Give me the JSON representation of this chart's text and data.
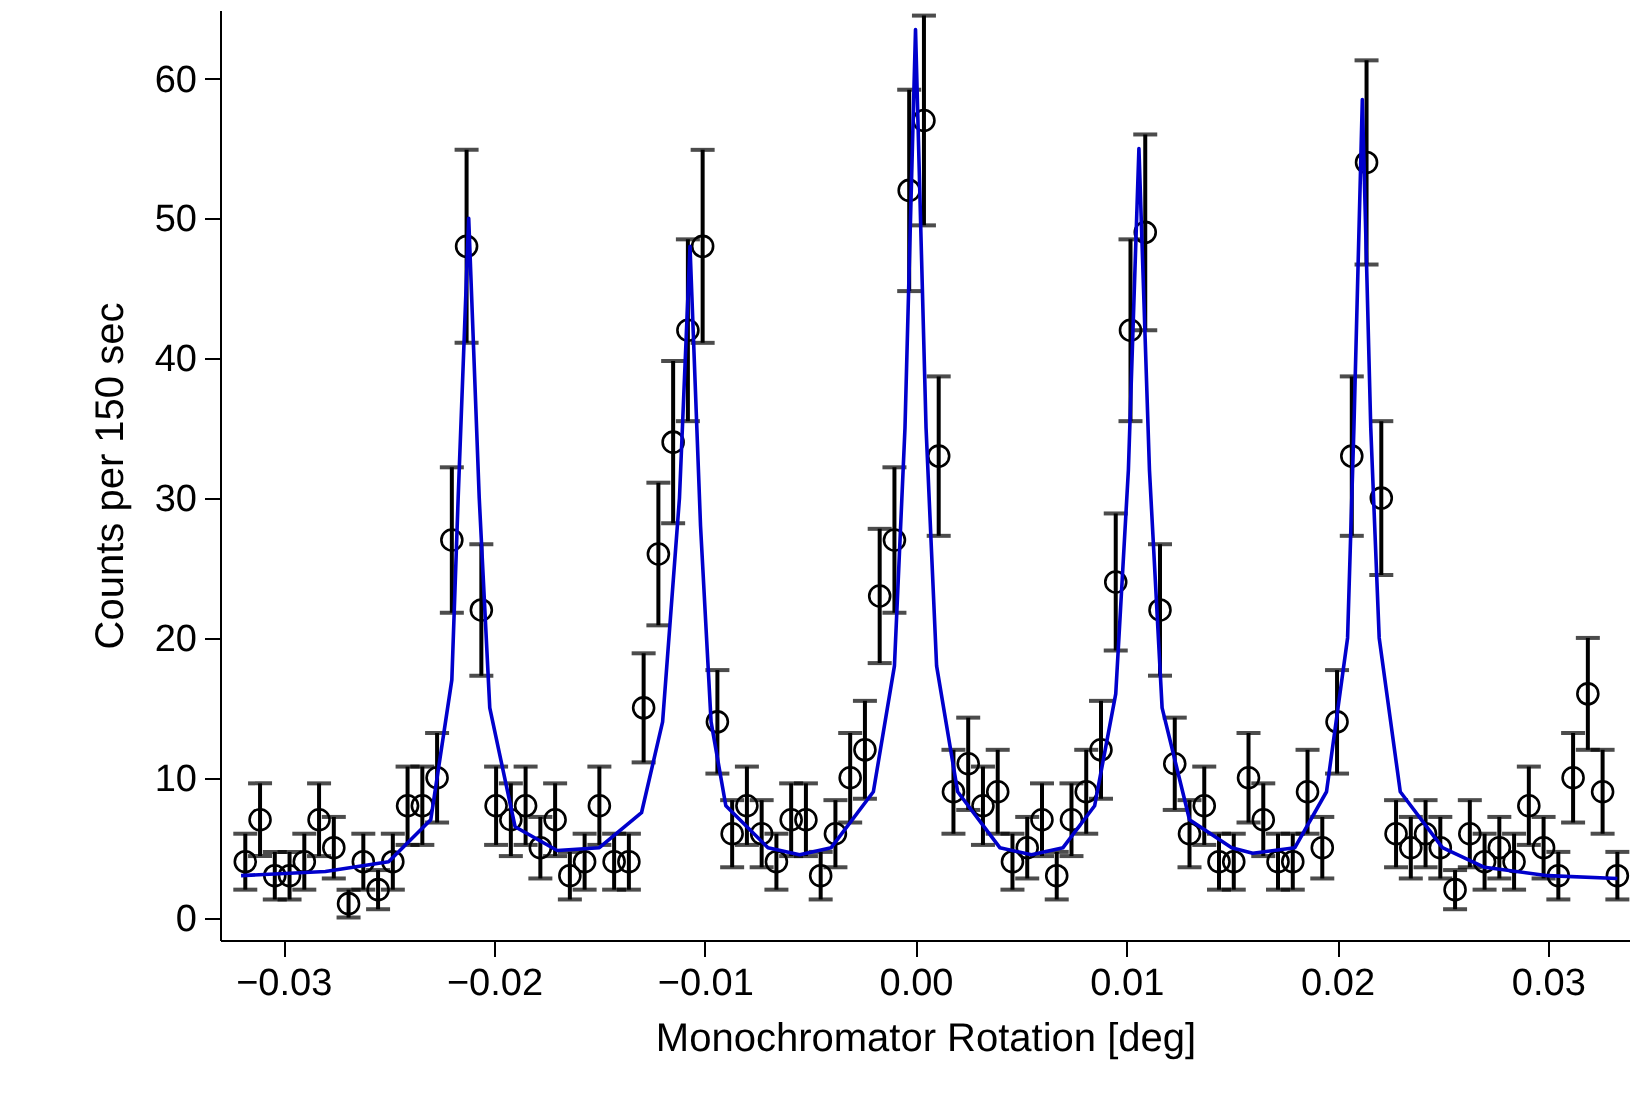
{
  "chart_data": {
    "type": "scatter",
    "xlabel": "Monochromator Rotation [deg]",
    "ylabel": "Counts per 150 sec",
    "xlim": [
      -0.033,
      0.0339
    ],
    "ylim": [
      -1.6,
      64.9
    ],
    "xticks": [
      -0.03,
      -0.02,
      -0.01,
      {
        "value": 0,
        "label": "0.00"
      },
      0.01,
      0.02,
      0.03
    ],
    "yticks": [
      0,
      10,
      20,
      30,
      40,
      50,
      60
    ],
    "grid": false,
    "series": [
      {
        "color": "#000000",
        "marker": "circle",
        "x": [
          -0.0318,
          -0.0311,
          -0.0304,
          -0.0297,
          -0.029,
          -0.0283,
          -0.0276,
          -0.0269,
          -0.0262,
          -0.0255,
          -0.0248,
          -0.0241,
          -0.0234,
          -0.0227,
          -0.022,
          -0.0213,
          -0.0206,
          -0.0199,
          -0.0192,
          -0.0185,
          -0.0178,
          -0.0171,
          -0.0164,
          -0.0157,
          -0.015,
          -0.0143,
          -0.0136,
          -0.0129,
          -0.0122,
          -0.0115,
          -0.0108,
          -0.0101,
          -0.0094,
          -0.0087,
          -0.008,
          -0.0073,
          -0.0066,
          -0.0059,
          -0.0052,
          -0.0045,
          -0.0038,
          -0.0031,
          -0.0024,
          -0.0017,
          -0.001,
          -0.0003,
          0.0004,
          0.0011,
          0.0018,
          0.0025,
          0.0032,
          0.0039,
          0.0046,
          0.0053,
          0.006,
          0.0067,
          0.0074,
          0.0081,
          0.0088,
          0.0095,
          0.0102,
          0.0109,
          0.0116,
          0.0123,
          0.013,
          0.0137,
          0.0144,
          0.0151,
          0.0158,
          0.0165,
          0.0172,
          0.0179,
          0.0186,
          0.0193,
          0.02,
          0.0207,
          0.0214,
          0.0221,
          0.0228,
          0.0235,
          0.0242,
          0.0249,
          0.0256,
          0.0263,
          0.027,
          0.0277,
          0.0284,
          0.0291,
          0.0298,
          0.0305,
          0.0312,
          0.0319,
          0.0326,
          0.0333
        ],
        "values": [
          4,
          7,
          3,
          3,
          4,
          7,
          5,
          1,
          4,
          2,
          4,
          8,
          8,
          10,
          27,
          48,
          22,
          8,
          7,
          8,
          5,
          7,
          3,
          4,
          8,
          4,
          4,
          15,
          26,
          34,
          42,
          48,
          14,
          6,
          8,
          6,
          4,
          7,
          7,
          3,
          6,
          10,
          12,
          23,
          27,
          52,
          57,
          33,
          9,
          11,
          8,
          9,
          4,
          5,
          7,
          3,
          7,
          9,
          12,
          24,
          42,
          49,
          22,
          11,
          6,
          8,
          4,
          4,
          10,
          7,
          4,
          4,
          9,
          5,
          14,
          33,
          54,
          30,
          6,
          5,
          6,
          5,
          2,
          6,
          4,
          5,
          4,
          8,
          5,
          3,
          10,
          16,
          9,
          3
        ],
        "errors": [
          2,
          2.6,
          1.7,
          1.7,
          2,
          2.6,
          2.2,
          1,
          2,
          1.4,
          2,
          2.8,
          2.8,
          3.2,
          5.2,
          6.9,
          4.7,
          2.8,
          2.6,
          2.8,
          2.2,
          2.6,
          1.7,
          2,
          2.8,
          2,
          2,
          3.9,
          5.1,
          5.8,
          6.5,
          6.9,
          3.7,
          2.4,
          2.8,
          2.4,
          2,
          2.6,
          2.6,
          1.7,
          2.4,
          3.2,
          3.5,
          4.8,
          5.2,
          7.2,
          7.5,
          5.7,
          3,
          3.3,
          2.8,
          3,
          2,
          2.2,
          2.6,
          1.7,
          2.6,
          3,
          3.5,
          4.9,
          6.5,
          7,
          4.7,
          3.3,
          2.4,
          2.8,
          2,
          2,
          3.2,
          2.6,
          2,
          2,
          3,
          2.2,
          3.7,
          5.7,
          7.3,
          5.5,
          2.4,
          2.2,
          2.4,
          2.2,
          1.4,
          2.4,
          2,
          2.2,
          2,
          2.8,
          2.2,
          1.7,
          3.2,
          4,
          3,
          1.7
        ]
      },
      {
        "type": "line",
        "color": "#0000cc",
        "marker": "none",
        "line_style": "solid",
        "x": [
          -0.032,
          -0.028,
          -0.025,
          -0.023,
          -0.022,
          -0.0217,
          -0.0212,
          -0.0207,
          -0.0202,
          -0.019,
          -0.017,
          -0.015,
          -0.013,
          -0.012,
          -0.0112,
          -0.0107,
          -0.0102,
          -0.0097,
          -0.009,
          -0.007,
          -0.0055,
          -0.004,
          -0.002,
          -0.001,
          -0.0005,
          0,
          0.0005,
          0.001,
          0.002,
          0.004,
          0.0055,
          0.007,
          0.0085,
          0.0095,
          0.0101,
          0.0106,
          0.0111,
          0.0117,
          0.013,
          0.015,
          0.016,
          0.018,
          0.0195,
          0.0205,
          0.0208,
          0.0212,
          0.0216,
          0.022,
          0.023,
          0.025,
          0.027,
          0.03,
          0.0333
        ],
        "values": [
          3,
          3.3,
          4,
          7,
          17,
          30,
          50,
          30,
          15,
          6.5,
          4.8,
          5,
          7.5,
          14,
          30,
          48,
          28,
          14,
          8,
          5,
          4.5,
          5,
          9,
          18,
          35,
          63.5,
          35,
          18,
          9,
          5,
          4.5,
          5,
          8,
          16,
          32,
          55,
          32,
          15,
          7,
          5,
          4.6,
          5,
          9,
          20,
          35,
          58.5,
          35,
          20,
          9,
          5,
          3.6,
          3,
          2.8
        ]
      }
    ]
  }
}
